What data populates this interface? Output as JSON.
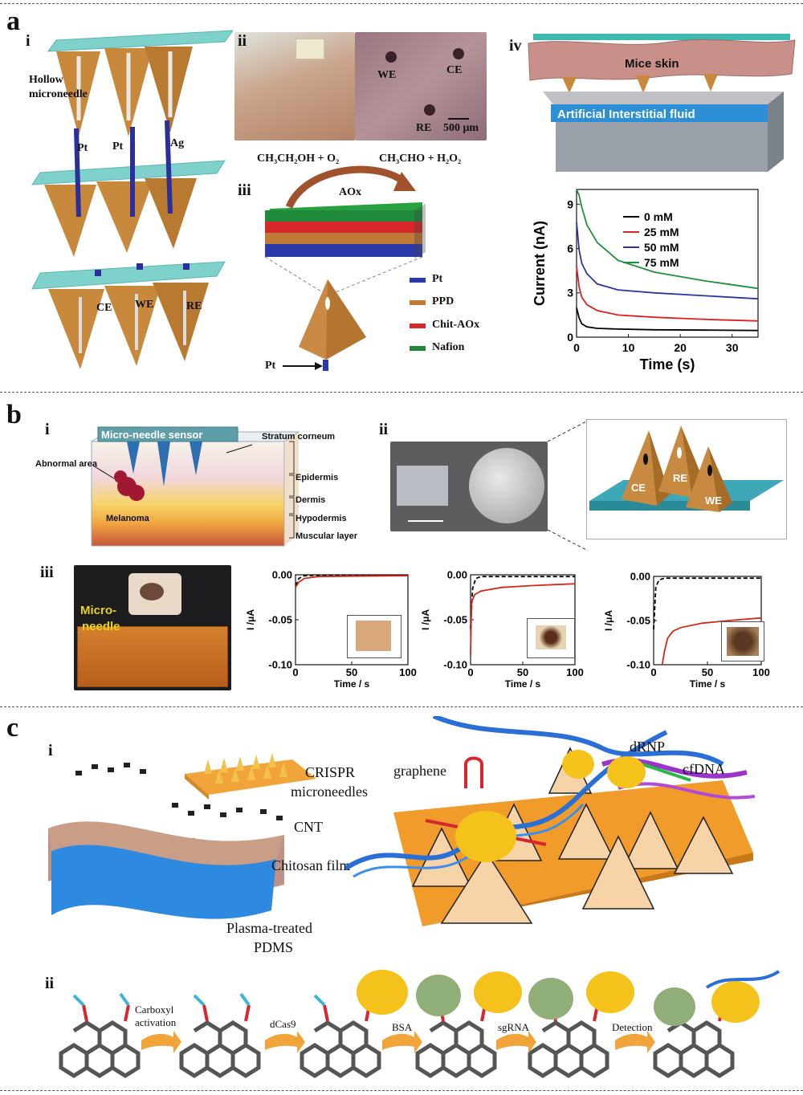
{
  "panels": {
    "a": {
      "letter": "a",
      "i": {
        "label": "i",
        "hollow": "Hollow",
        "microneedle": "microneedle",
        "pt1": "Pt",
        "pt2": "Pt",
        "ag": "Ag",
        "ce": "CE",
        "we": "WE",
        "re": "RE"
      },
      "ii": {
        "label": "ii",
        "we": "WE",
        "ce": "CE",
        "re": "RE",
        "scale": "500 μm"
      },
      "iii": {
        "label": "iii",
        "reaction_left": "CH₃CH₂OH + O₂",
        "reaction_right": "CH₃CHO +  H₂O₂",
        "enzyme": "AOx",
        "pt_arrow": "Pt",
        "legend": [
          {
            "name": "Pt",
            "color": "#2b3aa8"
          },
          {
            "name": "PPD",
            "color": "#c07a35"
          },
          {
            "name": "Chit-AOx",
            "color": "#d62828"
          },
          {
            "name": "Nafion",
            "color": "#1f8a3a"
          }
        ]
      },
      "iv": {
        "label": "iv",
        "skin": "Mice skin",
        "fluid": "Artificial Interstitial fluid"
      }
    },
    "b": {
      "letter": "b",
      "i": {
        "label": "i",
        "sensor": "Micro-needle sensor",
        "stratum": "Stratum corneum",
        "abnormal": "Abnormal area",
        "melanoma": "Melanoma",
        "layers": [
          "Epidermis",
          "Dermis",
          "Hypodermis",
          "Muscular layer"
        ]
      },
      "ii": {
        "label": "ii",
        "ce": "CE",
        "re": "RE",
        "we": "WE"
      },
      "iii": {
        "label": "iii",
        "micro": "Micro-",
        "needle": "needle"
      }
    },
    "c": {
      "letter": "c",
      "i": {
        "label": "i",
        "crispr1": "CRISPR",
        "crispr2": "microneedles",
        "cnt": "CNT",
        "chitosan": "Chitosan film",
        "pdms1": "Plasma-treated",
        "pdms2": "PDMS",
        "graphene": "graphene",
        "drnp": "dRNP",
        "cfdna": "cfDNA"
      },
      "ii": {
        "label": "ii",
        "step1a": "Carboxyl",
        "step1b": "activation",
        "step2": "dCas9",
        "step3": "BSA",
        "step4": "sgRNA",
        "step5": "Detection"
      }
    }
  },
  "chart_data": [
    {
      "type": "line",
      "xlabel": "Time (s)",
      "ylabel": "Current (nA)",
      "xlim": [
        0,
        35
      ],
      "ylim": [
        0,
        10
      ],
      "xticks": [
        0,
        10,
        20,
        30
      ],
      "yticks": [
        0,
        3,
        6,
        9
      ],
      "legend_position": "top-right",
      "series": [
        {
          "name": "0 mM",
          "color": "#000000",
          "points": [
            [
              0,
              2.0
            ],
            [
              0.5,
              1.3
            ],
            [
              1,
              0.9
            ],
            [
              2,
              0.7
            ],
            [
              4,
              0.6
            ],
            [
              8,
              0.55
            ],
            [
              15,
              0.5
            ],
            [
              25,
              0.48
            ],
            [
              35,
              0.45
            ]
          ]
        },
        {
          "name": "25 mM",
          "color": "#e02020",
          "points": [
            [
              0,
              4.8
            ],
            [
              0.5,
              3.4
            ],
            [
              1,
              2.7
            ],
            [
              2,
              2.2
            ],
            [
              4,
              1.8
            ],
            [
              8,
              1.5
            ],
            [
              15,
              1.35
            ],
            [
              25,
              1.2
            ],
            [
              35,
              1.1
            ]
          ]
        },
        {
          "name": "50 mM",
          "color": "#2a35a8",
          "points": [
            [
              0,
              7.8
            ],
            [
              0.5,
              5.9
            ],
            [
              1,
              5.0
            ],
            [
              2,
              4.3
            ],
            [
              4,
              3.6
            ],
            [
              8,
              3.2
            ],
            [
              15,
              3.0
            ],
            [
              25,
              2.8
            ],
            [
              35,
              2.6
            ]
          ]
        },
        {
          "name": "75 mM",
          "color": "#1e8f3a",
          "points": [
            [
              0,
              10
            ],
            [
              0.5,
              9.6
            ],
            [
              1,
              8.8
            ],
            [
              2,
              7.6
            ],
            [
              4,
              6.4
            ],
            [
              8,
              5.2
            ],
            [
              15,
              4.4
            ],
            [
              25,
              3.8
            ],
            [
              35,
              3.3
            ]
          ]
        }
      ]
    },
    {
      "type": "line",
      "xlabel": "Time / s",
      "ylabel": "I /μA",
      "xlim": [
        0,
        100
      ],
      "ylim": [
        -0.1,
        0.0
      ],
      "xticks": [
        0,
        50,
        100
      ],
      "yticks": [
        "0.00",
        "-0.05",
        "-0.10"
      ],
      "series": [
        {
          "name": "",
          "color": "#000000",
          "dashed": true,
          "points": [
            [
              0,
              -0.012
            ],
            [
              3,
              -0.004
            ],
            [
              8,
              -0.001
            ],
            [
              20,
              -0.0005
            ],
            [
              50,
              -0.0005
            ],
            [
              100,
              -0.0005
            ]
          ]
        },
        {
          "name": "",
          "color": "#d62818",
          "points": [
            [
              0,
              -0.014
            ],
            [
              3,
              -0.008
            ],
            [
              8,
              -0.004
            ],
            [
              20,
              -0.002
            ],
            [
              50,
              -0.0015
            ],
            [
              100,
              -0.001
            ]
          ]
        }
      ]
    },
    {
      "type": "line",
      "xlabel": "Time / s",
      "ylabel": "I /μA",
      "xlim": [
        0,
        100
      ],
      "ylim": [
        -0.1,
        0.0
      ],
      "xticks": [
        0,
        50,
        100
      ],
      "yticks": [
        "0.00",
        "-0.05",
        "-0.10"
      ],
      "series": [
        {
          "name": "",
          "color": "#000000",
          "dashed": true,
          "points": [
            [
              0,
              -0.06
            ],
            [
              2,
              -0.015
            ],
            [
              5,
              -0.004
            ],
            [
              10,
              -0.002
            ],
            [
              50,
              -0.002
            ],
            [
              100,
              -0.002
            ]
          ]
        },
        {
          "name": "",
          "color": "#d62818",
          "points": [
            [
              0,
              -0.09
            ],
            [
              1,
              -0.03
            ],
            [
              4,
              -0.022
            ],
            [
              10,
              -0.018
            ],
            [
              30,
              -0.014
            ],
            [
              60,
              -0.012
            ],
            [
              100,
              -0.01
            ]
          ]
        }
      ]
    },
    {
      "type": "line",
      "xlabel": "Time / s",
      "ylabel": "I /μA",
      "xlim": [
        0,
        100
      ],
      "ylim": [
        -0.1,
        0.0
      ],
      "xticks": [
        0,
        50,
        100
      ],
      "yticks": [
        "0.00",
        "-0.05",
        "-0.10"
      ],
      "series": [
        {
          "name": "",
          "color": "#000000",
          "dashed": true,
          "points": [
            [
              0,
              -0.06
            ],
            [
              2,
              -0.012
            ],
            [
              5,
              -0.004
            ],
            [
              10,
              -0.002
            ],
            [
              50,
              -0.002
            ],
            [
              100,
              -0.002
            ]
          ]
        },
        {
          "name": "",
          "color": "#d62818",
          "points": [
            [
              8,
              -0.1
            ],
            [
              10,
              -0.085
            ],
            [
              13,
              -0.07
            ],
            [
              18,
              -0.062
            ],
            [
              25,
              -0.058
            ],
            [
              45,
              -0.053
            ],
            [
              70,
              -0.05
            ],
            [
              100,
              -0.047
            ]
          ]
        }
      ]
    }
  ]
}
